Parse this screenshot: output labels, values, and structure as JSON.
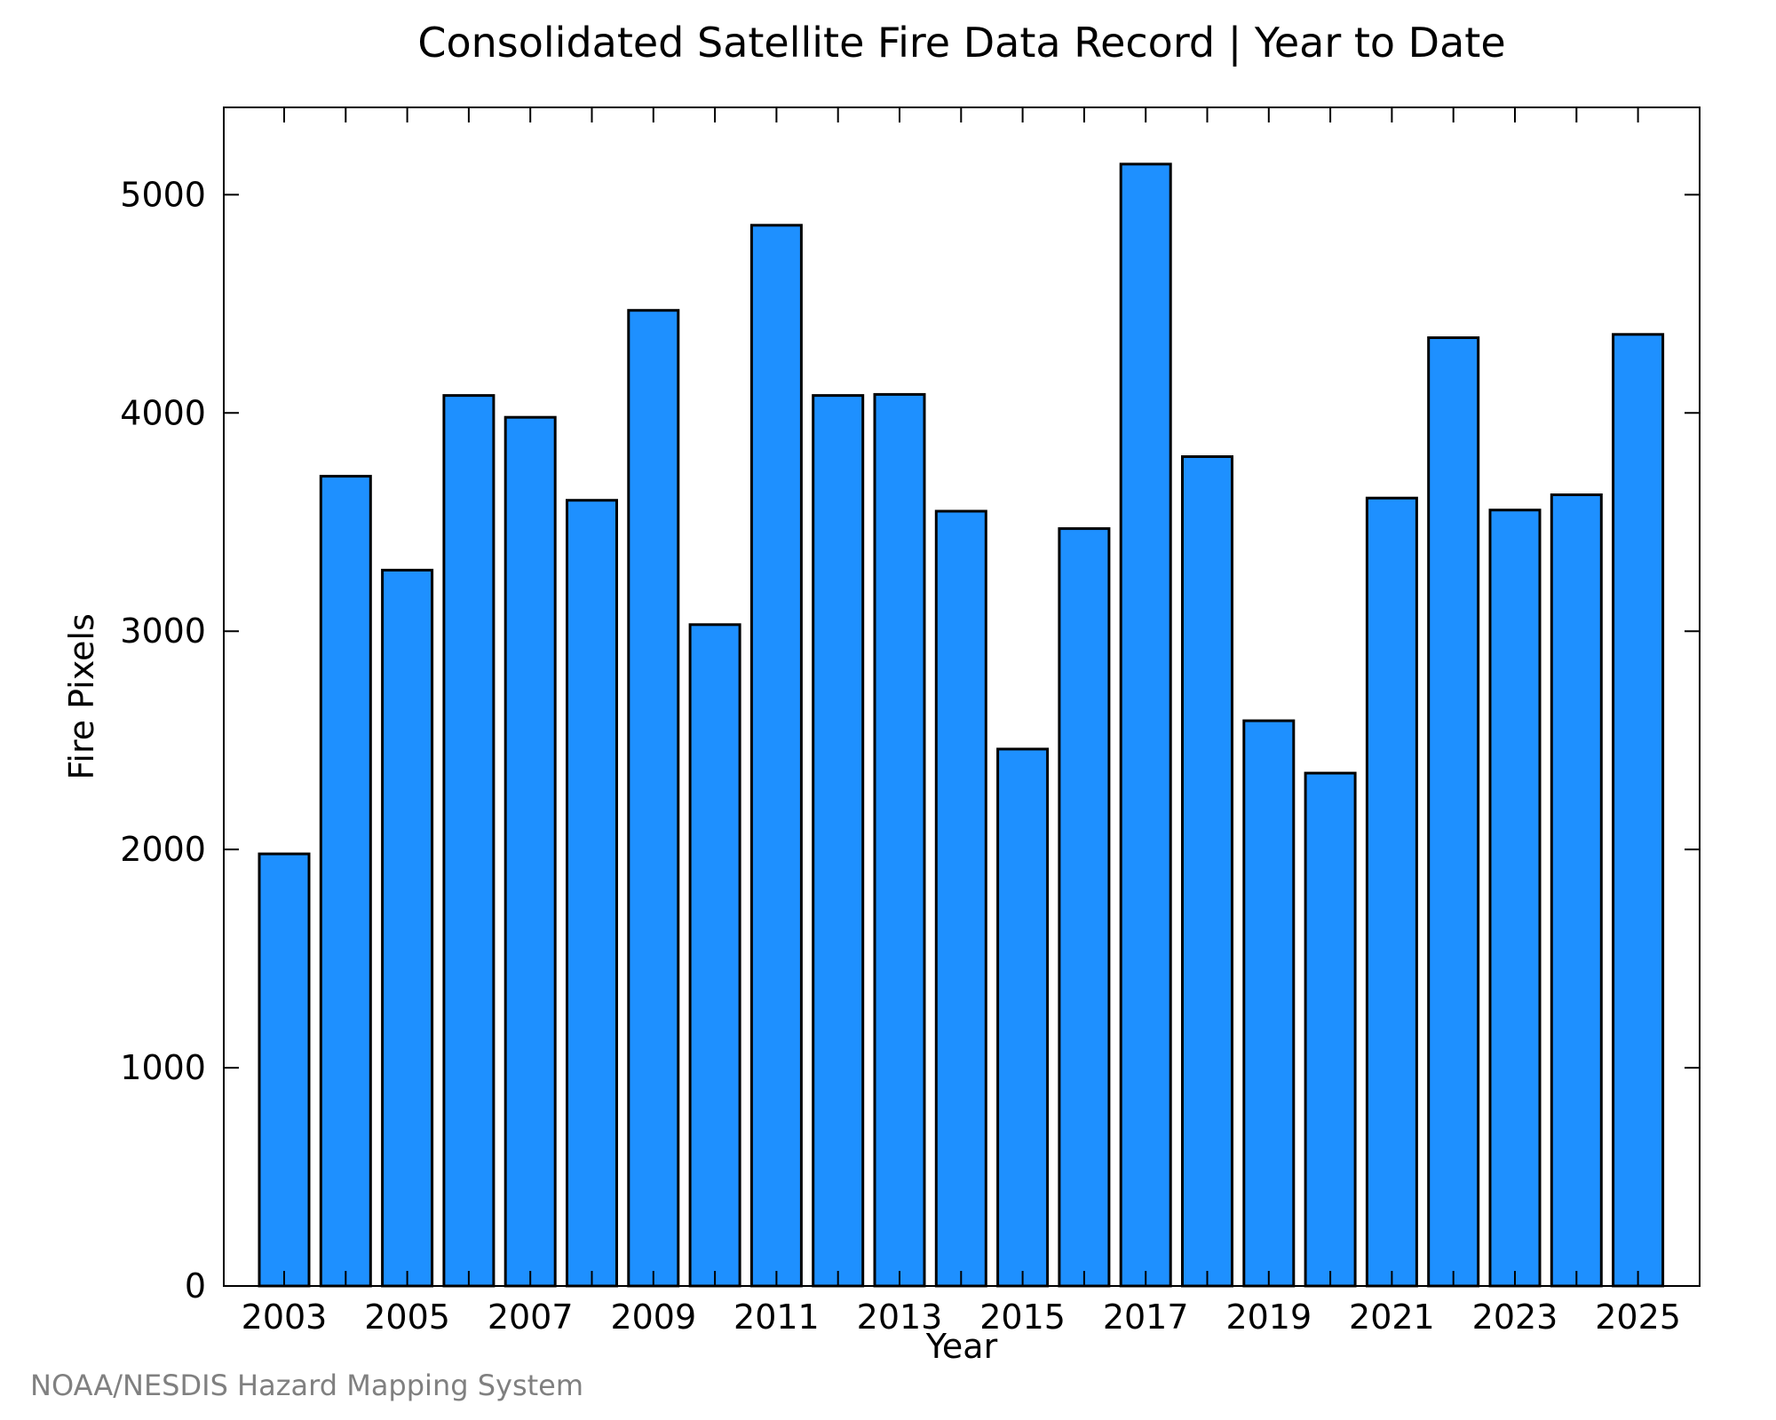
{
  "chart_data": {
    "type": "bar",
    "title": "Consolidated Satellite Fire Data Record | Year to Date",
    "xlabel": "Year",
    "ylabel": "Fire Pixels",
    "categories": [
      "2003",
      "2004",
      "2005",
      "2006",
      "2007",
      "2008",
      "2009",
      "2010",
      "2011",
      "2012",
      "2013",
      "2014",
      "2015",
      "2016",
      "2017",
      "2018",
      "2019",
      "2020",
      "2021",
      "2022",
      "2023",
      "2024",
      "2025"
    ],
    "values": [
      1980,
      3710,
      3280,
      4080,
      3980,
      3600,
      4470,
      3030,
      4860,
      4080,
      4085,
      3550,
      2460,
      3470,
      5140,
      3800,
      2590,
      2350,
      3610,
      4345,
      3555,
      3625,
      4360
    ],
    "x_tick_labels": [
      "2003",
      "2005",
      "2007",
      "2009",
      "2011",
      "2013",
      "2015",
      "2017",
      "2019",
      "2021",
      "2023",
      "2025"
    ],
    "y_ticks": [
      0,
      1000,
      2000,
      3000,
      4000,
      5000
    ],
    "ylim": [
      0,
      5400
    ],
    "bar_color": "#1e90ff",
    "grid": false,
    "legend": "none"
  },
  "credit": "NOAA/NESDIS Hazard Mapping System"
}
